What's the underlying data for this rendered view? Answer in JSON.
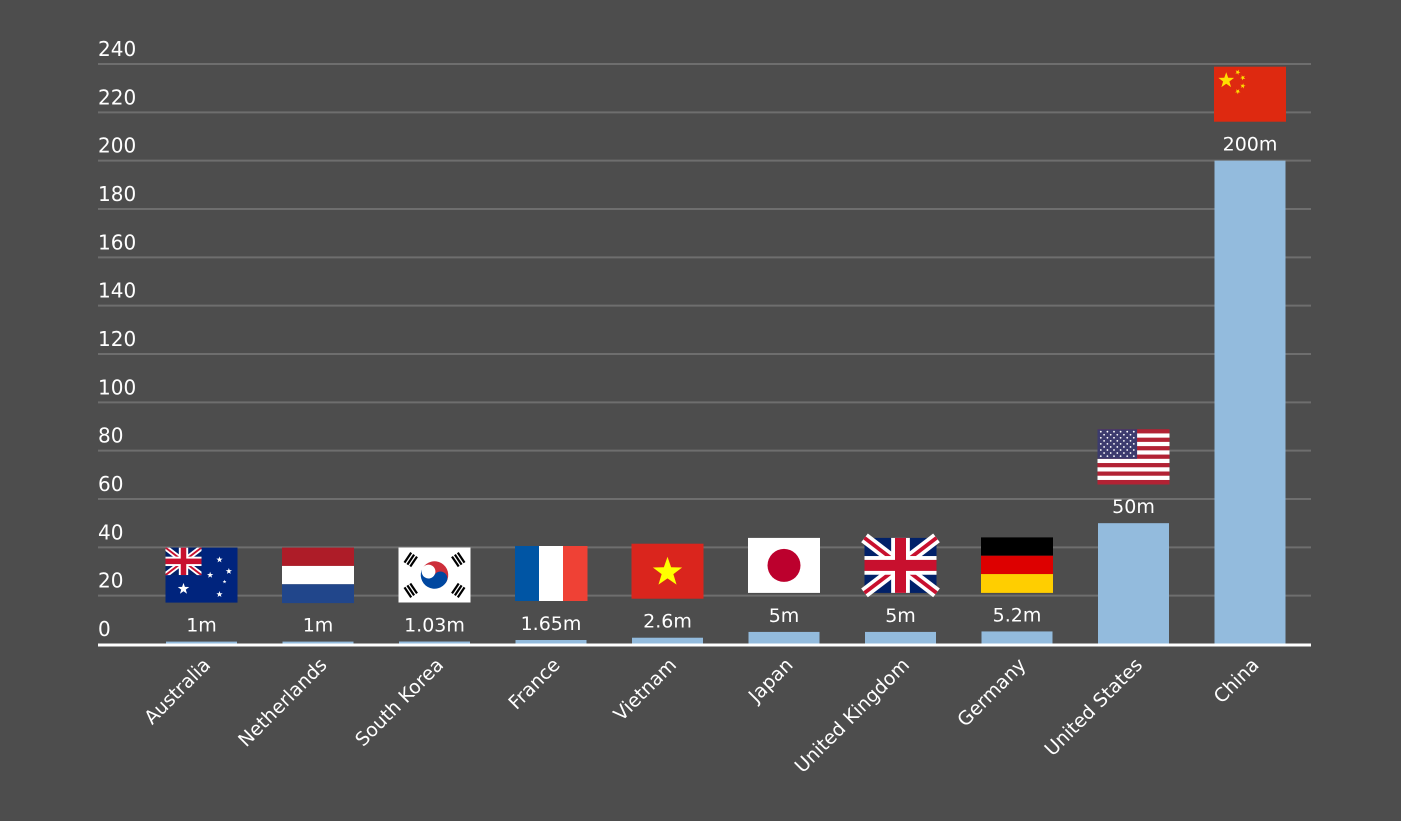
{
  "chart_data": {
    "type": "bar",
    "title": "",
    "xlabel": "",
    "ylabel": "",
    "ylim": [
      0,
      240
    ],
    "yticks": [
      "0",
      "20",
      "40",
      "60",
      "80",
      "100",
      "120",
      "140",
      "160",
      "180",
      "200",
      "220",
      "240"
    ],
    "grid": true,
    "categories": [
      "Australia",
      "Netherlands",
      "South Korea",
      "France",
      "Vietnam",
      "Japan",
      "United Kingdom",
      "Germany",
      "United States",
      "China"
    ],
    "values": [
      1,
      1,
      1.03,
      1.65,
      2.6,
      5,
      5,
      5.2,
      50,
      200
    ],
    "data_labels": [
      "1m",
      "1m",
      "1.03m",
      "1.65m",
      "2.6m",
      "5m",
      "5m",
      "5.2m",
      "50m",
      "200m"
    ],
    "flags": [
      "australia-flag",
      "netherlands-flag",
      "south-korea-flag",
      "france-flag",
      "vietnam-flag",
      "japan-flag",
      "united-kingdom-flag",
      "germany-flag",
      "united-states-flag",
      "china-flag"
    ],
    "colors": {
      "background": "#4d4d4d",
      "bar": "#93bbdd",
      "grid": "#6e6e6e",
      "axis": "#ffffff",
      "text": "#ffffff"
    }
  }
}
